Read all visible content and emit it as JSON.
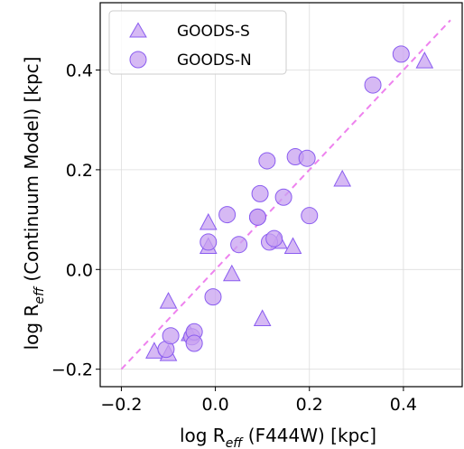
{
  "chart_data": {
    "type": "scatter",
    "xlabel": {
      "base": "log R",
      "sub": "eff",
      "rest": " (F444W) [kpc]"
    },
    "ylabel": {
      "base": "log R",
      "sub": "eff",
      "rest": " (Continuum Model) [kpc]"
    },
    "xlim": [
      -0.245,
      0.525
    ],
    "ylim": [
      -0.235,
      0.535
    ],
    "xticks": [
      -0.2,
      0.0,
      0.2,
      0.4
    ],
    "xtick_labels": [
      "−0.2",
      "0.0",
      "0.2",
      "0.4"
    ],
    "yticks": [
      -0.2,
      0.0,
      0.2,
      0.4
    ],
    "ytick_labels": [
      "−0.2",
      "0.0",
      "0.2",
      "0.4"
    ],
    "grid": true,
    "legend_position": "top-left",
    "reference_line": {
      "x": [
        -0.2,
        0.5
      ],
      "y": [
        -0.2,
        0.5
      ],
      "style": "dashed",
      "color": "#ee82ee"
    },
    "series": [
      {
        "name": "GOODS-S",
        "marker": "triangle",
        "fill": "#c8a2f0",
        "stroke": "#8a5cf0",
        "points": [
          [
            -0.13,
            -0.165
          ],
          [
            -0.1,
            -0.17
          ],
          [
            -0.1,
            -0.065
          ],
          [
            -0.055,
            -0.13
          ],
          [
            -0.015,
            0.045
          ],
          [
            -0.015,
            0.093
          ],
          [
            0.035,
            -0.01
          ],
          [
            0.1,
            -0.1
          ],
          [
            0.135,
            0.055
          ],
          [
            0.165,
            0.045
          ],
          [
            0.27,
            0.18
          ],
          [
            0.445,
            0.417
          ]
        ]
      },
      {
        "name": "GOODS-N",
        "marker": "circle",
        "fill": "#c8a2f0",
        "stroke": "#8a5cf0",
        "points": [
          [
            -0.105,
            -0.16
          ],
          [
            -0.095,
            -0.133
          ],
          [
            -0.05,
            -0.135
          ],
          [
            -0.045,
            -0.125
          ],
          [
            -0.045,
            -0.148
          ],
          [
            -0.015,
            0.055
          ],
          [
            -0.005,
            -0.055
          ],
          [
            0.025,
            0.11
          ],
          [
            0.05,
            0.05
          ],
          [
            0.09,
            0.105
          ],
          [
            0.09,
            0.105
          ],
          [
            0.095,
            0.152
          ],
          [
            0.11,
            0.218
          ],
          [
            0.115,
            0.055
          ],
          [
            0.125,
            0.062
          ],
          [
            0.145,
            0.145
          ],
          [
            0.17,
            0.226
          ],
          [
            0.195,
            0.223
          ],
          [
            0.2,
            0.108
          ],
          [
            0.335,
            0.37
          ],
          [
            0.395,
            0.432
          ]
        ]
      }
    ]
  }
}
